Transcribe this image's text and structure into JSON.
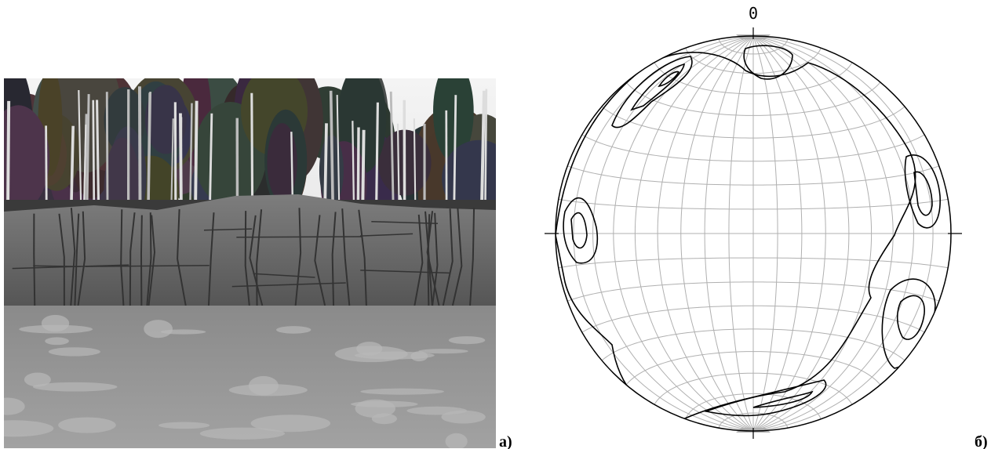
{
  "panels": [
    {
      "label": "а)"
    },
    {
      "label": "б)",
      "north_label": "0"
    }
  ]
}
